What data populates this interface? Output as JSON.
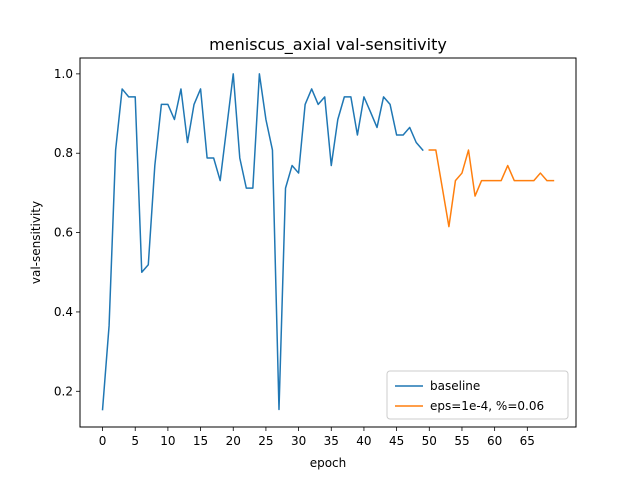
{
  "chart_data": {
    "type": "line",
    "title": "meniscus_axial val-sensitivity",
    "xlabel": "epoch",
    "ylabel": "val-sensitivity",
    "xlim": [
      -3.45,
      72.45
    ],
    "ylim": [
      0.11,
      1.04
    ],
    "xticks": [
      0,
      5,
      10,
      15,
      20,
      25,
      30,
      35,
      40,
      45,
      50,
      55,
      60,
      65
    ],
    "yticks": [
      0.2,
      0.4,
      0.6,
      0.8,
      1.0
    ],
    "ytick_labels": [
      "0.2",
      "0.4",
      "0.6",
      "0.8",
      "1.0"
    ],
    "grid": false,
    "legend_position": "lower-right",
    "series": [
      {
        "name": "baseline",
        "color": "#1f77b4",
        "x": [
          0,
          1,
          2,
          3,
          4,
          5,
          6,
          7,
          8,
          9,
          10,
          11,
          12,
          13,
          14,
          15,
          16,
          17,
          18,
          19,
          20,
          21,
          22,
          23,
          24,
          25,
          26,
          27,
          28,
          29,
          30,
          31,
          32,
          33,
          34,
          35,
          36,
          37,
          38,
          39,
          40,
          41,
          42,
          43,
          44,
          45,
          46,
          47,
          48,
          49
        ],
        "y": [
          0.154,
          0.365,
          0.808,
          0.962,
          0.942,
          0.942,
          0.5,
          0.519,
          0.769,
          0.923,
          0.923,
          0.885,
          0.962,
          0.827,
          0.923,
          0.962,
          0.788,
          0.788,
          0.731,
          0.865,
          1.0,
          0.788,
          0.712,
          0.712,
          1.0,
          0.885,
          0.808,
          0.154,
          0.712,
          0.769,
          0.75,
          0.923,
          0.962,
          0.923,
          0.942,
          0.769,
          0.885,
          0.942,
          0.942,
          0.846,
          0.942,
          0.904,
          0.865,
          0.942,
          0.923,
          0.846,
          0.846,
          0.865,
          0.827,
          0.808
        ]
      },
      {
        "name": "eps=1e-4, %=0.06",
        "color": "#ff7f0e",
        "x": [
          50,
          51,
          52,
          53,
          54,
          55,
          56,
          57,
          58,
          59,
          60,
          61,
          62,
          63,
          64,
          65,
          66,
          67,
          68,
          69
        ],
        "y": [
          0.808,
          0.808,
          0.712,
          0.615,
          0.731,
          0.75,
          0.808,
          0.692,
          0.731,
          0.731,
          0.731,
          0.731,
          0.769,
          0.731,
          0.731,
          0.731,
          0.731,
          0.75,
          0.731,
          0.731
        ]
      }
    ]
  }
}
